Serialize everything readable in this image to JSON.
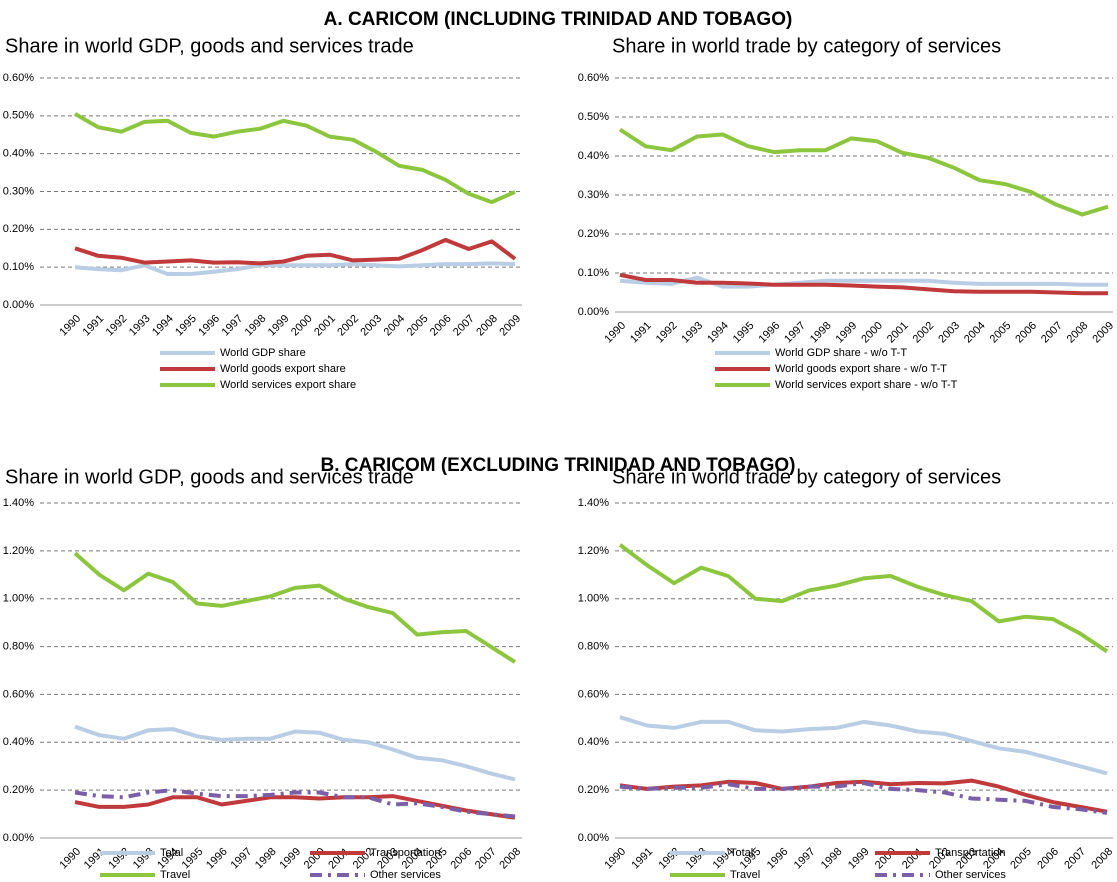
{
  "headings": [
    "A.   CARICOM (INCLUDING TRINIDAD AND TOBAGO)",
    "B.   CARICOM (EXCLUDING TRINIDAD AND TOBAGO)"
  ],
  "chart_data": [
    {
      "type": "line",
      "title": "Share in world GDP, goods and services trade",
      "categories": [
        "1990",
        "1991",
        "1992",
        "1993",
        "1994",
        "1995",
        "1996",
        "1997",
        "1998",
        "1999",
        "2000",
        "2001",
        "2002",
        "2003",
        "2004",
        "2005",
        "2006",
        "2007",
        "2008",
        "2009"
      ],
      "ylim": [
        0,
        0.6
      ],
      "yticks": [
        {
          "value": 0,
          "label": "0.00%"
        },
        {
          "value": 0.1,
          "label": "0.10%"
        },
        {
          "value": 0.2,
          "label": "0.20%"
        },
        {
          "value": 0.3,
          "label": "0.30%"
        },
        {
          "value": 0.4,
          "label": "0.40%"
        },
        {
          "value": 0.5,
          "label": "0.50%"
        },
        {
          "value": 0.6,
          "label": "0.60%"
        }
      ],
      "grid": true,
      "series": [
        {
          "name": "World GDP share",
          "color": "#b9cde5",
          "values": [
            0.1,
            0.095,
            0.092,
            0.105,
            0.082,
            0.082,
            0.088,
            0.095,
            0.105,
            0.105,
            0.105,
            0.105,
            0.108,
            0.105,
            0.102,
            0.105,
            0.108,
            0.108,
            0.11,
            0.108
          ]
        },
        {
          "name": "World goods export share",
          "color": "#c0393b",
          "values": [
            0.15,
            0.13,
            0.125,
            0.112,
            0.115,
            0.118,
            0.112,
            0.113,
            0.11,
            0.115,
            0.13,
            0.133,
            0.118,
            0.12,
            0.122,
            0.145,
            0.172,
            0.148,
            0.168,
            0.122
          ]
        },
        {
          "name": "World services export share",
          "color": "#8cc63e",
          "values": [
            0.505,
            0.47,
            0.458,
            0.484,
            0.487,
            0.455,
            0.445,
            0.458,
            0.466,
            0.487,
            0.474,
            0.445,
            0.437,
            0.405,
            0.368,
            0.357,
            0.331,
            0.294,
            0.272,
            0.299
          ]
        }
      ]
    },
    {
      "type": "line",
      "title": "Share in world trade by category of services",
      "categories": [
        "1990",
        "1991",
        "1992",
        "1993",
        "1994",
        "1995",
        "1996",
        "1997",
        "1998",
        "1999",
        "2000",
        "2001",
        "2002",
        "2003",
        "2004",
        "2005",
        "2006",
        "2007",
        "2008",
        "2009"
      ],
      "ylim": [
        0,
        0.6
      ],
      "yticks": [
        {
          "value": 0,
          "label": "0.00%"
        },
        {
          "value": 0.1,
          "label": "0.10%"
        },
        {
          "value": 0.2,
          "label": "0.20%"
        },
        {
          "value": 0.3,
          "label": "0.30%"
        },
        {
          "value": 0.4,
          "label": "0.40%"
        },
        {
          "value": 0.5,
          "label": "0.50%"
        },
        {
          "value": 0.6,
          "label": "0.60%"
        }
      ],
      "grid": true,
      "series": [
        {
          "name": "World GDP share - w/o T-T",
          "color": "#b9cde5",
          "values": [
            0.08,
            0.075,
            0.072,
            0.088,
            0.065,
            0.065,
            0.07,
            0.075,
            0.08,
            0.08,
            0.08,
            0.08,
            0.08,
            0.075,
            0.072,
            0.072,
            0.072,
            0.072,
            0.07,
            0.07
          ]
        },
        {
          "name": "World goods export share - w/o T-T",
          "color": "#c0393b",
          "values": [
            0.095,
            0.082,
            0.082,
            0.075,
            0.075,
            0.073,
            0.07,
            0.07,
            0.07,
            0.068,
            0.065,
            0.063,
            0.058,
            0.053,
            0.052,
            0.052,
            0.052,
            0.05,
            0.048,
            0.048
          ]
        },
        {
          "name": "World services export share - w/o T-T",
          "color": "#8cc63e",
          "values": [
            0.468,
            0.425,
            0.415,
            0.45,
            0.455,
            0.425,
            0.41,
            0.415,
            0.415,
            0.445,
            0.438,
            0.408,
            0.395,
            0.37,
            0.338,
            0.328,
            0.308,
            0.275,
            0.25,
            0.27
          ]
        }
      ]
    },
    {
      "type": "line",
      "title": "Share in world GDP, goods and services trade",
      "categories": [
        "1990",
        "1991",
        "1992",
        "1993",
        "1994",
        "1995",
        "1996",
        "1997",
        "1998",
        "1999",
        "2000",
        "2001",
        "2002",
        "2003",
        "2004",
        "2005",
        "2006",
        "2007",
        "2008"
      ],
      "ylim": [
        0,
        1.4
      ],
      "yticks": [
        {
          "value": 0,
          "label": "0.00%"
        },
        {
          "value": 0.2,
          "label": "0.20%"
        },
        {
          "value": 0.4,
          "label": "0.40%"
        },
        {
          "value": 0.6,
          "label": "0.60%"
        },
        {
          "value": 0.8,
          "label": "0.80%"
        },
        {
          "value": 1.0,
          "label": "1.00%"
        },
        {
          "value": 1.2,
          "label": "1.20%"
        },
        {
          "value": 1.4,
          "label": "1.40%"
        }
      ],
      "grid": true,
      "series": [
        {
          "name": "Total",
          "color": "#b9cde5",
          "values": [
            0.465,
            0.43,
            0.415,
            0.45,
            0.455,
            0.425,
            0.41,
            0.415,
            0.415,
            0.445,
            0.44,
            0.41,
            0.4,
            0.37,
            0.335,
            0.325,
            0.3,
            0.27,
            0.245
          ]
        },
        {
          "name": "Transportation",
          "color": "#c0393b",
          "values": [
            0.15,
            0.13,
            0.13,
            0.14,
            0.17,
            0.17,
            0.14,
            0.155,
            0.17,
            0.17,
            0.165,
            0.17,
            0.17,
            0.175,
            0.155,
            0.135,
            0.115,
            0.1,
            0.085
          ]
        },
        {
          "name": "Travel",
          "color": "#8cc63e",
          "values": [
            1.19,
            1.1,
            1.035,
            1.105,
            1.07,
            0.98,
            0.97,
            0.99,
            1.01,
            1.045,
            1.055,
            1.0,
            0.965,
            0.94,
            0.85,
            0.86,
            0.865,
            0.8,
            0.735
          ]
        },
        {
          "name": "Other services",
          "color": "#7a5ea8",
          "dash": "dash-dot",
          "values": [
            0.19,
            0.175,
            0.17,
            0.19,
            0.2,
            0.185,
            0.175,
            0.175,
            0.18,
            0.19,
            0.19,
            0.17,
            0.17,
            0.14,
            0.145,
            0.13,
            0.11,
            0.1,
            0.09
          ]
        }
      ]
    },
    {
      "type": "line",
      "title": "Share in world trade by category of services",
      "categories": [
        "1990",
        "1991",
        "1992",
        "1993",
        "1994",
        "1995",
        "1996",
        "1997",
        "1998",
        "1999",
        "2000",
        "2001",
        "2002",
        "2003",
        "2004",
        "2005",
        "2006",
        "2007",
        "2008"
      ],
      "ylim": [
        0,
        1.4
      ],
      "yticks": [
        {
          "value": 0,
          "label": "0.00%"
        },
        {
          "value": 0.2,
          "label": "0.20%"
        },
        {
          "value": 0.4,
          "label": "0.40%"
        },
        {
          "value": 0.6,
          "label": "0.60%"
        },
        {
          "value": 0.8,
          "label": "0.80%"
        },
        {
          "value": 1.0,
          "label": "1.00%"
        },
        {
          "value": 1.2,
          "label": "1.20%"
        },
        {
          "value": 1.4,
          "label": "1.40%"
        }
      ],
      "grid": true,
      "series": [
        {
          "name": "Total",
          "color": "#b9cde5",
          "values": [
            0.505,
            0.47,
            0.46,
            0.485,
            0.485,
            0.45,
            0.445,
            0.455,
            0.46,
            0.485,
            0.47,
            0.445,
            0.435,
            0.405,
            0.375,
            0.36,
            0.33,
            0.3,
            0.27
          ]
        },
        {
          "name": "Transportation",
          "color": "#c0393b",
          "values": [
            0.22,
            0.205,
            0.215,
            0.22,
            0.235,
            0.23,
            0.205,
            0.215,
            0.23,
            0.235,
            0.225,
            0.23,
            0.228,
            0.24,
            0.215,
            0.18,
            0.15,
            0.13,
            0.11
          ]
        },
        {
          "name": "Travel",
          "color": "#8cc63e",
          "values": [
            1.225,
            1.14,
            1.065,
            1.13,
            1.095,
            1.0,
            0.99,
            1.035,
            1.055,
            1.085,
            1.095,
            1.05,
            1.015,
            0.99,
            0.905,
            0.925,
            0.915,
            0.855,
            0.78
          ]
        },
        {
          "name": "Other services",
          "color": "#7a5ea8",
          "dash": "dash-dot",
          "values": [
            0.215,
            0.205,
            0.21,
            0.21,
            0.225,
            0.205,
            0.205,
            0.215,
            0.215,
            0.23,
            0.205,
            0.2,
            0.19,
            0.165,
            0.16,
            0.155,
            0.13,
            0.12,
            0.105
          ]
        }
      ]
    }
  ]
}
